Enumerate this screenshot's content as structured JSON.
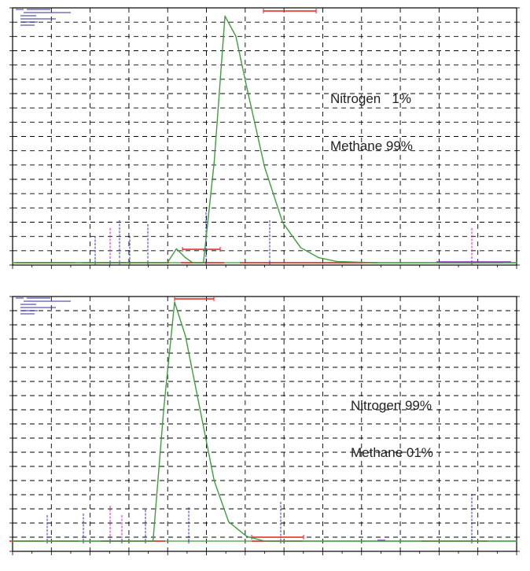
{
  "colors": {
    "trace": "#3f9d3f",
    "baseline": "#e02020",
    "grid": "#000000",
    "marker_blue": "#3030c0",
    "marker_magenta": "#e020c0"
  },
  "chart_data": [
    {
      "type": "line",
      "title": "",
      "annotation_line1": "Nitrogen   1%",
      "annotation_line2": "Methane 99%",
      "xlim": [
        0,
        14
      ],
      "ylim": [
        0,
        1
      ],
      "grid": true,
      "series": [
        {
          "x": [
            0.0,
            4.3,
            4.55,
            4.8,
            5.0,
            5.3,
            5.6,
            5.9,
            6.2,
            6.5,
            7.0,
            7.5,
            8.0,
            8.5,
            9.0,
            10.0,
            14.0
          ],
          "y": [
            0.0,
            0.0,
            0.055,
            0.02,
            0.0,
            0.0,
            0.4,
            0.98,
            0.9,
            0.7,
            0.38,
            0.16,
            0.06,
            0.02,
            0.005,
            0.0,
            0.0
          ]
        }
      ]
    },
    {
      "type": "line",
      "title": "",
      "annotation_line1": "Nitrogen 99%",
      "annotation_line2": "Methane 01%",
      "xlim": [
        0,
        14
      ],
      "ylim": [
        0,
        1
      ],
      "grid": true,
      "series": [
        {
          "x": [
            0.0,
            3.9,
            4.2,
            4.5,
            4.8,
            5.2,
            5.6,
            6.0,
            6.5,
            7.0,
            14.0
          ],
          "y": [
            0.0,
            0.0,
            0.55,
            0.99,
            0.85,
            0.55,
            0.25,
            0.08,
            0.02,
            0.0,
            0.0
          ]
        }
      ]
    }
  ]
}
